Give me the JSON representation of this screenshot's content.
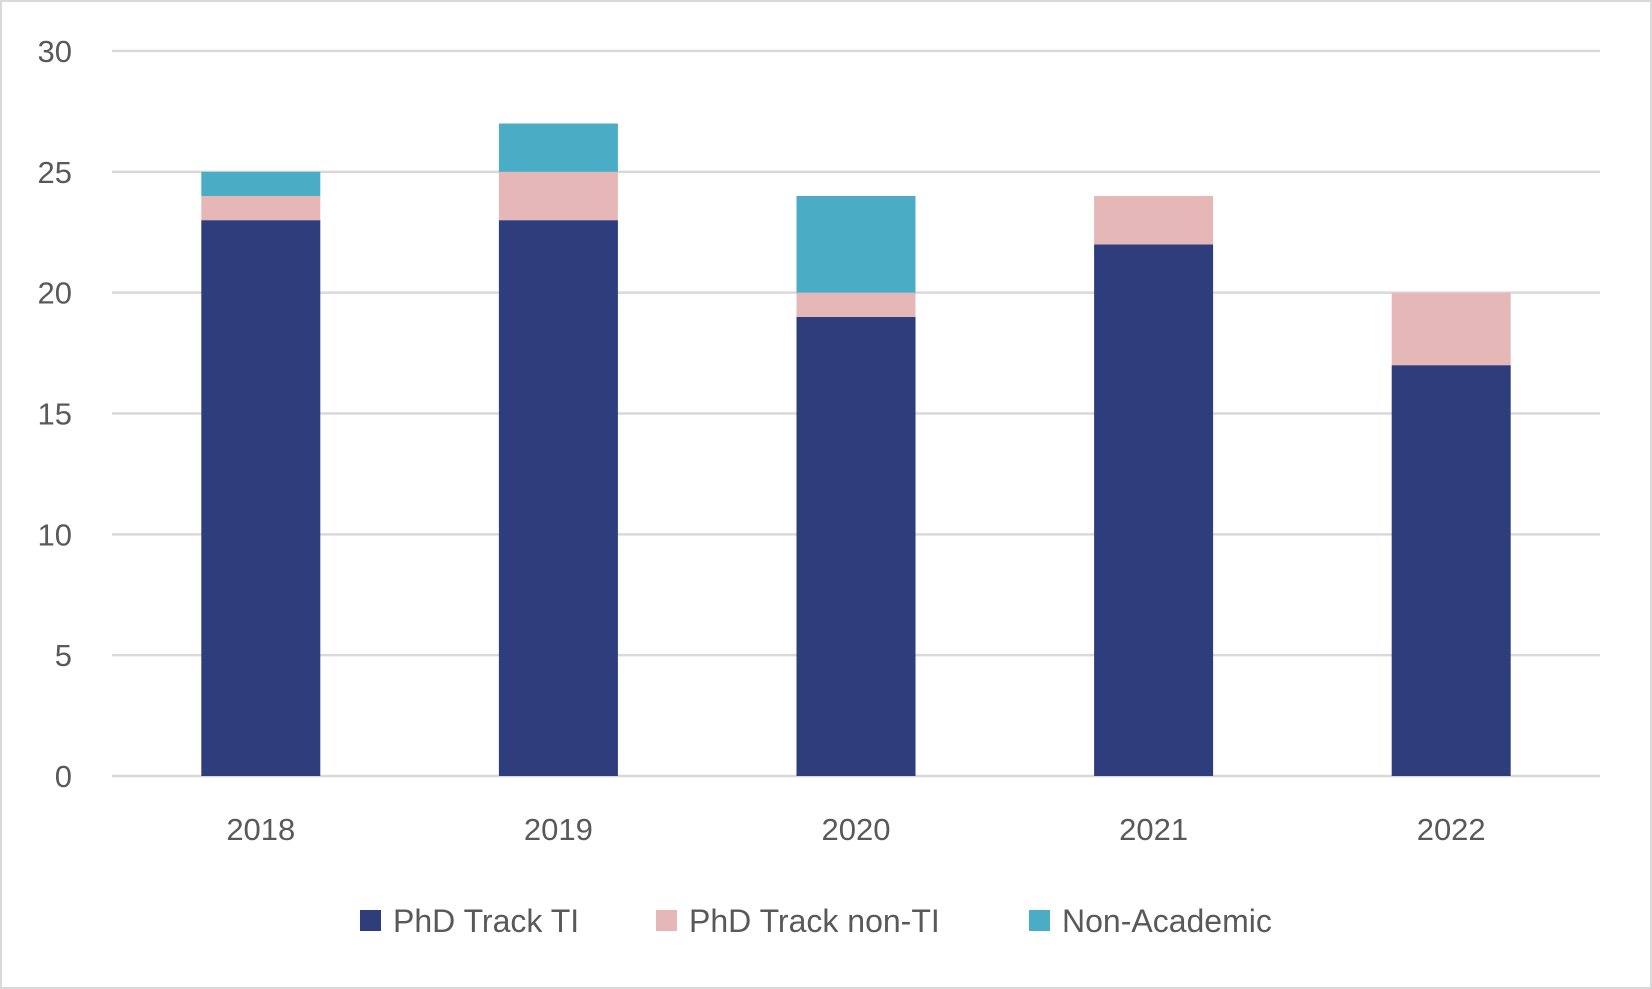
{
  "chart_data": {
    "type": "bar",
    "stacked": true,
    "title": "",
    "xlabel": "",
    "ylabel": "",
    "categories": [
      "2018",
      "2019",
      "2020",
      "2021",
      "2022"
    ],
    "series": [
      {
        "name": "PhD Track TI",
        "color": "#2e3d7c",
        "values": [
          23,
          23,
          19,
          22,
          17
        ]
      },
      {
        "name": "PhD Track non-TI",
        "color": "#e5b8b7",
        "values": [
          1,
          2,
          1,
          2,
          3
        ]
      },
      {
        "name": "Non-Academic",
        "color": "#4bacc6",
        "values": [
          1,
          2,
          4,
          0,
          0
        ]
      }
    ],
    "ylim": [
      0,
      30
    ],
    "yticks": [
      "0",
      "5",
      "10",
      "15",
      "20",
      "25",
      "30"
    ],
    "grid": true,
    "legend": "bottom"
  }
}
